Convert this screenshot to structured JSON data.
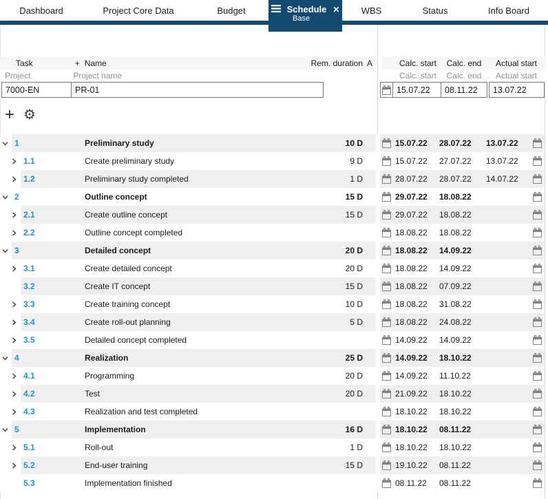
{
  "tabs": [
    {
      "label": "Dashboard",
      "active": false
    },
    {
      "label": "Project Core Data",
      "active": false
    },
    {
      "label": "Budget",
      "active": false
    },
    {
      "label": "Schedule",
      "sublabel": "Base",
      "active": true
    },
    {
      "label": "WBS",
      "active": false
    },
    {
      "label": "Status",
      "active": false
    },
    {
      "label": "Info Board",
      "active": false
    }
  ],
  "icons": {
    "menu": "hamburger",
    "close_glyph": "✕",
    "add_glyph": "+",
    "settings_glyph": "⚙",
    "calendar": "calendar-outline",
    "chevron_expanded": "chevron-down",
    "chevron_collapsed": "chevron-right"
  },
  "header": {
    "task": "Task",
    "plus": "+",
    "name": "Name",
    "rem_duration": "Rem. duration",
    "a_col": "A",
    "calc_start": "Calc. start",
    "calc_end": "Calc. end",
    "actual_start": "Actual start"
  },
  "subheader": {
    "project": "Project",
    "project_name": "Project name",
    "calc_start": "Calc. start",
    "calc_end": "Calc. end",
    "actual_start": "Actual start"
  },
  "project_row": {
    "id": "7000-EN",
    "name": "PR-01",
    "calc_start": "15.07.22",
    "calc_end": "08.11.22",
    "actual_start": "13.07.22"
  },
  "tasks": [
    {
      "num": "1",
      "name": "Preliminary study",
      "duration": "10 D",
      "calc_start": "15.07.22",
      "calc_end": "28.07.22",
      "actual_start": "13.07.22",
      "level": 1,
      "bold": true,
      "chevron": "down"
    },
    {
      "num": "1.1",
      "name": "Create preliminary study",
      "duration": "9 D",
      "calc_start": "15.07.22",
      "calc_end": "27.07.22",
      "actual_start": "13.07.22",
      "level": 2,
      "bold": false,
      "chevron": "right"
    },
    {
      "num": "1.2",
      "name": "Preliminary study completed",
      "duration": "1 D",
      "calc_start": "28.07.22",
      "calc_end": "28.07.22",
      "actual_start": "14.07.22",
      "level": 2,
      "bold": false,
      "chevron": "right"
    },
    {
      "num": "2",
      "name": "Outline concept",
      "duration": "15 D",
      "calc_start": "29.07.22",
      "calc_end": "18.08.22",
      "actual_start": "",
      "level": 1,
      "bold": true,
      "chevron": "down"
    },
    {
      "num": "2.1",
      "name": "Create outline concept",
      "duration": "15 D",
      "calc_start": "29.07.22",
      "calc_end": "18.08.22",
      "actual_start": "",
      "level": 2,
      "bold": false,
      "chevron": "right"
    },
    {
      "num": "2.2",
      "name": "Outline concept completed",
      "duration": "",
      "calc_start": "18.08.22",
      "calc_end": "18.08.22",
      "actual_start": "",
      "level": 2,
      "bold": false,
      "chevron": "right"
    },
    {
      "num": "3",
      "name": "Detailed concept",
      "duration": "20 D",
      "calc_start": "18.08.22",
      "calc_end": "14.09.22",
      "actual_start": "",
      "level": 1,
      "bold": true,
      "chevron": "down"
    },
    {
      "num": "3.1",
      "name": "Create detailed concept",
      "duration": "20 D",
      "calc_start": "18.08.22",
      "calc_end": "14.09.22",
      "actual_start": "",
      "level": 2,
      "bold": false,
      "chevron": "right"
    },
    {
      "num": "3.2",
      "name": "Create IT concept",
      "duration": "15 D",
      "calc_start": "18.08.22",
      "calc_end": "07.09.22",
      "actual_start": "",
      "level": 2,
      "bold": false,
      "chevron": "none"
    },
    {
      "num": "3.3",
      "name": "Create training concept",
      "duration": "10 D",
      "calc_start": "18.08.22",
      "calc_end": "31.08.22",
      "actual_start": "",
      "level": 2,
      "bold": false,
      "chevron": "right"
    },
    {
      "num": "3.4",
      "name": "Create roll-out planning",
      "duration": "5 D",
      "calc_start": "18.08.22",
      "calc_end": "24.08.22",
      "actual_start": "",
      "level": 2,
      "bold": false,
      "chevron": "right"
    },
    {
      "num": "3.5",
      "name": "Detailed concept completed",
      "duration": "",
      "calc_start": "14.09.22",
      "calc_end": "14.09.22",
      "actual_start": "",
      "level": 2,
      "bold": false,
      "chevron": "right"
    },
    {
      "num": "4",
      "name": "Realization",
      "duration": "25 D",
      "calc_start": "14.09.22",
      "calc_end": "18.10.22",
      "actual_start": "",
      "level": 1,
      "bold": true,
      "chevron": "down"
    },
    {
      "num": "4.1",
      "name": "Programming",
      "duration": "20 D",
      "calc_start": "14.09.22",
      "calc_end": "11.10.22",
      "actual_start": "",
      "level": 2,
      "bold": false,
      "chevron": "right"
    },
    {
      "num": "4.2",
      "name": "Test",
      "duration": "20 D",
      "calc_start": "21.09.22",
      "calc_end": "18.10.22",
      "actual_start": "",
      "level": 2,
      "bold": false,
      "chevron": "right"
    },
    {
      "num": "4.3",
      "name": "Realization and test completed",
      "duration": "",
      "calc_start": "18.10.22",
      "calc_end": "18.10.22",
      "actual_start": "",
      "level": 2,
      "bold": false,
      "chevron": "right"
    },
    {
      "num": "5",
      "name": "Implementation",
      "duration": "16 D",
      "calc_start": "18.10.22",
      "calc_end": "08.11.22",
      "actual_start": "",
      "level": 1,
      "bold": true,
      "chevron": "down"
    },
    {
      "num": "5.1",
      "name": "Roll-out",
      "duration": "1 D",
      "calc_start": "18.10.22",
      "calc_end": "18.10.22",
      "actual_start": "",
      "level": 2,
      "bold": false,
      "chevron": "right"
    },
    {
      "num": "5.2",
      "name": "End-user training",
      "duration": "15 D",
      "calc_start": "19.10.22",
      "calc_end": "08.11.22",
      "actual_start": "",
      "level": 2,
      "bold": false,
      "chevron": "right"
    },
    {
      "num": "5.3",
      "name": "Implementation finished",
      "duration": "",
      "calc_start": "08.11.22",
      "calc_end": "08.11.22",
      "actual_start": "",
      "level": 2,
      "bold": false,
      "chevron": "none"
    }
  ],
  "colors": {
    "accent_navy": "#134a70",
    "link_blue": "#2191c9",
    "zebra_gray": "#efefef",
    "header_bg": "#f6f6f6",
    "divider": "#d6d6da"
  }
}
